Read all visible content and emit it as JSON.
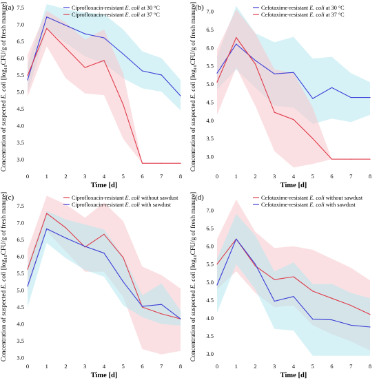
{
  "figure": {
    "ylabel_text": "Concentration of suspected E. coli [log₁₀CFU/g of fresh manure]"
  },
  "chart_data": [
    {
      "panel_label": "(a)",
      "type": "line",
      "xlabel": "Time [d]",
      "x": [
        0,
        1,
        2,
        3,
        4,
        5,
        6,
        7,
        8
      ],
      "xlim": [
        0,
        8
      ],
      "ylim": [
        2.7,
        7.6
      ],
      "yticks": [
        3.0,
        3.5,
        4.0,
        4.5,
        5.0,
        5.5,
        6.0,
        6.5,
        7.0,
        7.5
      ],
      "grid": false,
      "legend_position": "top-right",
      "series": [
        {
          "name": "Ciprofloxacin-resistant E. coli at 30 °C",
          "color": "#3b3bd6",
          "band_color": "#b5e8ee",
          "values": [
            5.35,
            7.22,
            6.97,
            6.72,
            6.6,
            6.12,
            5.62,
            5.5,
            4.88
          ],
          "lower": [
            4.95,
            6.85,
            6.45,
            6.05,
            5.85,
            5.4,
            5.1,
            5.0,
            4.45
          ],
          "upper": [
            5.8,
            7.6,
            7.45,
            7.35,
            7.3,
            6.85,
            6.2,
            6.0,
            5.35
          ]
        },
        {
          "name": "Ciprofloxacin-resistant E. coli at 37 °C",
          "color": "#e03b4a",
          "band_color": "#f8c6cc",
          "values": [
            5.48,
            6.88,
            6.3,
            5.72,
            5.93,
            4.62,
            2.88,
            2.88,
            2.88
          ],
          "lower": [
            4.85,
            6.35,
            5.4,
            4.95,
            4.9,
            3.6,
            2.88,
            2.88,
            2.88
          ],
          "upper": [
            6.1,
            7.4,
            7.05,
            6.55,
            6.85,
            5.55,
            2.88,
            2.88,
            2.88
          ]
        }
      ]
    },
    {
      "panel_label": "(b)",
      "type": "line",
      "xlabel": "Time [d]",
      "x": [
        0,
        1,
        2,
        3,
        4,
        5,
        6,
        7,
        8
      ],
      "xlim": [
        0,
        8
      ],
      "ylim": [
        2.65,
        7.2
      ],
      "yticks": [
        3.0,
        3.5,
        4.0,
        4.5,
        5.0,
        5.5,
        6.0,
        6.5,
        7.0
      ],
      "grid": false,
      "legend_position": "top-right",
      "series": [
        {
          "name": "Cefotaxime-resistant E. coli at 30 °C",
          "color": "#3b3bd6",
          "band_color": "#b5e8ee",
          "values": [
            5.3,
            6.1,
            5.65,
            5.28,
            5.32,
            4.6,
            4.9,
            4.63,
            4.63
          ],
          "lower": [
            4.85,
            5.4,
            4.9,
            4.4,
            4.35,
            3.9,
            4.05,
            3.95,
            4.15
          ],
          "upper": [
            5.75,
            7.15,
            6.4,
            6.15,
            6.3,
            5.7,
            5.75,
            5.3,
            5.05
          ]
        },
        {
          "name": "Cefotaxime-resistant E. coli at 37 °C",
          "color": "#e03b4a",
          "band_color": "#f8c6cc",
          "values": [
            5.05,
            6.28,
            5.55,
            4.22,
            4.02,
            3.5,
            2.93,
            2.93,
            2.93
          ],
          "lower": [
            4.15,
            5.45,
            4.4,
            3.15,
            2.7,
            2.8,
            2.93,
            2.93,
            2.93
          ],
          "upper": [
            5.95,
            7.05,
            6.4,
            5.4,
            5.3,
            4.35,
            2.93,
            2.93,
            2.93
          ]
        }
      ]
    },
    {
      "panel_label": "(c)",
      "type": "line",
      "xlabel": "Time [d]",
      "x": [
        0,
        1,
        2,
        3,
        4,
        5,
        6,
        7,
        8
      ],
      "xlim": [
        0,
        8
      ],
      "ylim": [
        2.95,
        7.85
      ],
      "yticks": [
        3.0,
        3.5,
        4.0,
        4.5,
        5.0,
        5.5,
        6.0,
        6.5,
        7.0,
        7.5
      ],
      "grid": false,
      "legend_position": "top-right",
      "series": [
        {
          "name": "Ciprofloxacin-resistant E. coli without sawdust",
          "color": "#e03b4a",
          "band_color": "#f8c6cc",
          "values": [
            5.62,
            7.28,
            6.85,
            6.28,
            6.66,
            5.97,
            4.5,
            4.3,
            4.15
          ],
          "lower": [
            5.0,
            6.75,
            6.15,
            5.55,
            5.55,
            4.8,
            3.25,
            3.1,
            3.2
          ],
          "upper": [
            6.2,
            7.8,
            7.55,
            7.15,
            7.6,
            7.05,
            5.7,
            5.45,
            5.05
          ]
        },
        {
          "name": "Ciprofloxacin-resistant E. coli with sawdust",
          "color": "#3b3bd6",
          "band_color": "#b5e8ee",
          "values": [
            5.12,
            6.82,
            6.55,
            6.3,
            6.1,
            5.25,
            4.52,
            4.58,
            4.15
          ],
          "lower": [
            4.5,
            6.4,
            5.95,
            5.6,
            5.4,
            4.55,
            4.2,
            4.0,
            3.95
          ],
          "upper": [
            5.75,
            7.35,
            7.1,
            6.95,
            6.8,
            6.0,
            4.85,
            5.2,
            4.4
          ]
        }
      ]
    },
    {
      "panel_label": "(d)",
      "type": "line",
      "xlabel": "Time [d]",
      "x": [
        0,
        1,
        2,
        3,
        4,
        5,
        6,
        7,
        8
      ],
      "xlim": [
        0,
        8
      ],
      "ylim": [
        2.85,
        7.45
      ],
      "yticks": [
        3.0,
        3.5,
        4.0,
        4.5,
        5.0,
        5.5,
        6.0,
        6.5,
        7.0
      ],
      "grid": false,
      "legend_position": "top-right",
      "series": [
        {
          "name": "Cefotaxime-resistant E. coli without sawdust",
          "color": "#e03b4a",
          "band_color": "#f8c6cc",
          "values": [
            5.5,
            6.2,
            5.45,
            5.07,
            5.15,
            4.75,
            4.55,
            4.35,
            4.1
          ],
          "lower": [
            4.8,
            5.3,
            4.7,
            4.3,
            4.35,
            3.8,
            3.55,
            3.35,
            3.1
          ],
          "upper": [
            6.2,
            7.3,
            6.4,
            5.95,
            6.0,
            5.9,
            5.65,
            5.4,
            5.05
          ]
        },
        {
          "name": "Cefotaxime-resistant E. coli with sawdust",
          "color": "#3b3bd6",
          "band_color": "#b5e8ee",
          "values": [
            4.92,
            6.2,
            5.5,
            4.47,
            4.6,
            3.97,
            3.95,
            3.8,
            3.75
          ],
          "lower": [
            4.15,
            5.5,
            4.8,
            3.7,
            3.65,
            2.95,
            2.95,
            2.95,
            2.95
          ],
          "upper": [
            5.65,
            6.9,
            6.3,
            5.3,
            5.55,
            4.95,
            4.95,
            4.7,
            4.55
          ]
        }
      ]
    }
  ]
}
